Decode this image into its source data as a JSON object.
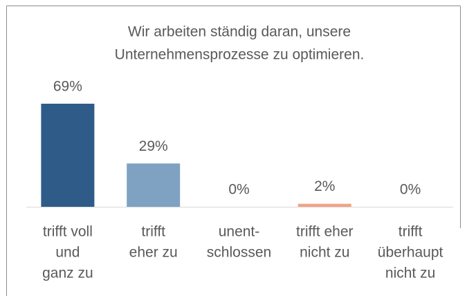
{
  "chart_data": {
    "type": "bar",
    "title": [
      "Wir arbeiten ständig daran, unsere",
      "Unternehmensprozesse zu optimieren."
    ],
    "categories": [
      [
        "trifft voll",
        "und",
        "ganz zu"
      ],
      [
        "trifft",
        "eher zu"
      ],
      [
        "unent-",
        "schlossen"
      ],
      [
        "trifft eher",
        "nicht zu"
      ],
      [
        "trifft",
        "überhaupt",
        "nicht zu"
      ]
    ],
    "values": [
      69,
      29,
      0,
      2,
      0
    ],
    "value_labels": [
      "69%",
      "29%",
      "0%",
      "2%",
      "0%"
    ],
    "colors": [
      "#2f5b88",
      "#7fa2c3",
      "#7fa2c3",
      "#f2a385",
      "#f2a385"
    ]
  }
}
